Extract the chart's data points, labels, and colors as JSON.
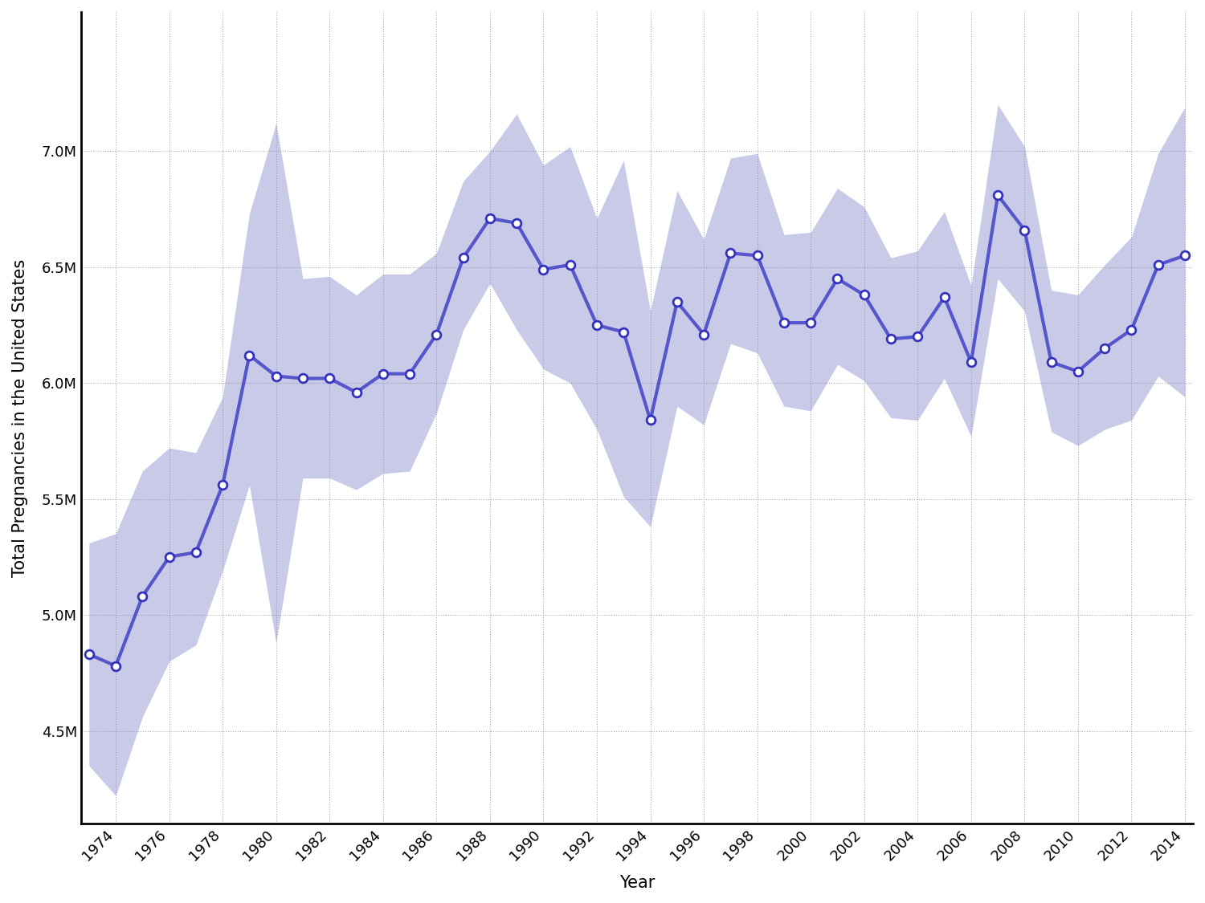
{
  "years": [
    1973,
    1974,
    1975,
    1976,
    1977,
    1978,
    1979,
    1980,
    1981,
    1982,
    1983,
    1984,
    1985,
    1986,
    1987,
    1988,
    1989,
    1990,
    1991,
    1992,
    1993,
    1994,
    1995,
    1996,
    1997,
    1998,
    1999,
    2000,
    2001,
    2002,
    2003,
    2004,
    2005,
    2006,
    2007,
    2008,
    2009,
    2010,
    2011,
    2012,
    2013,
    2014
  ],
  "values": [
    4830000,
    4780000,
    5080000,
    5250000,
    5270000,
    5560000,
    6120000,
    6030000,
    6020000,
    6020000,
    5960000,
    6040000,
    6040000,
    6210000,
    6540000,
    6710000,
    6690000,
    6490000,
    6510000,
    6250000,
    6220000,
    5840000,
    6350000,
    6210000,
    6560000,
    6550000,
    6260000,
    6260000,
    6450000,
    6380000,
    6190000,
    6200000,
    6370000,
    6090000,
    6810000,
    6660000,
    6090000,
    6050000,
    6150000,
    6230000,
    6510000,
    6550000
  ],
  "ci_lower": [
    4350000,
    4220000,
    4560000,
    4800000,
    4870000,
    5190000,
    5560000,
    4880000,
    5590000,
    5590000,
    5540000,
    5610000,
    5620000,
    5870000,
    6230000,
    6430000,
    6230000,
    6060000,
    6000000,
    5800000,
    5510000,
    5380000,
    5900000,
    5820000,
    6170000,
    6130000,
    5900000,
    5880000,
    6080000,
    6010000,
    5850000,
    5840000,
    6020000,
    5770000,
    6450000,
    6310000,
    5790000,
    5730000,
    5800000,
    5840000,
    6030000,
    5940000
  ],
  "ci_upper": [
    5310000,
    5350000,
    5620000,
    5720000,
    5700000,
    5940000,
    6730000,
    7120000,
    6450000,
    6460000,
    6380000,
    6470000,
    6470000,
    6560000,
    6870000,
    7000000,
    7160000,
    6940000,
    7020000,
    6710000,
    6960000,
    6310000,
    6830000,
    6620000,
    6970000,
    6990000,
    6640000,
    6650000,
    6840000,
    6760000,
    6540000,
    6570000,
    6740000,
    6420000,
    7200000,
    7020000,
    6400000,
    6380000,
    6510000,
    6630000,
    6990000,
    7190000
  ],
  "line_color": "#5555cc",
  "fill_color": "#8888cc",
  "fill_alpha": 0.45,
  "dot_fill": "#ffffff",
  "dot_edge_color": "#3333bb",
  "background_color": "#ffffff",
  "ylabel": "Total Pregnancies in the United States",
  "xlabel": "Year",
  "ylim_min": 4100000,
  "ylim_max": 7600000,
  "grid_color": "#aaaaaa",
  "ytick_labels": [
    "4.5M",
    "5.0M",
    "5.5M",
    "6.0M",
    "6.5M",
    "7.0M"
  ],
  "ytick_values": [
    4500000,
    5000000,
    5500000,
    6000000,
    6500000,
    7000000
  ],
  "xtick_start": 1974,
  "xtick_step": 2,
  "xtick_end": 2015
}
